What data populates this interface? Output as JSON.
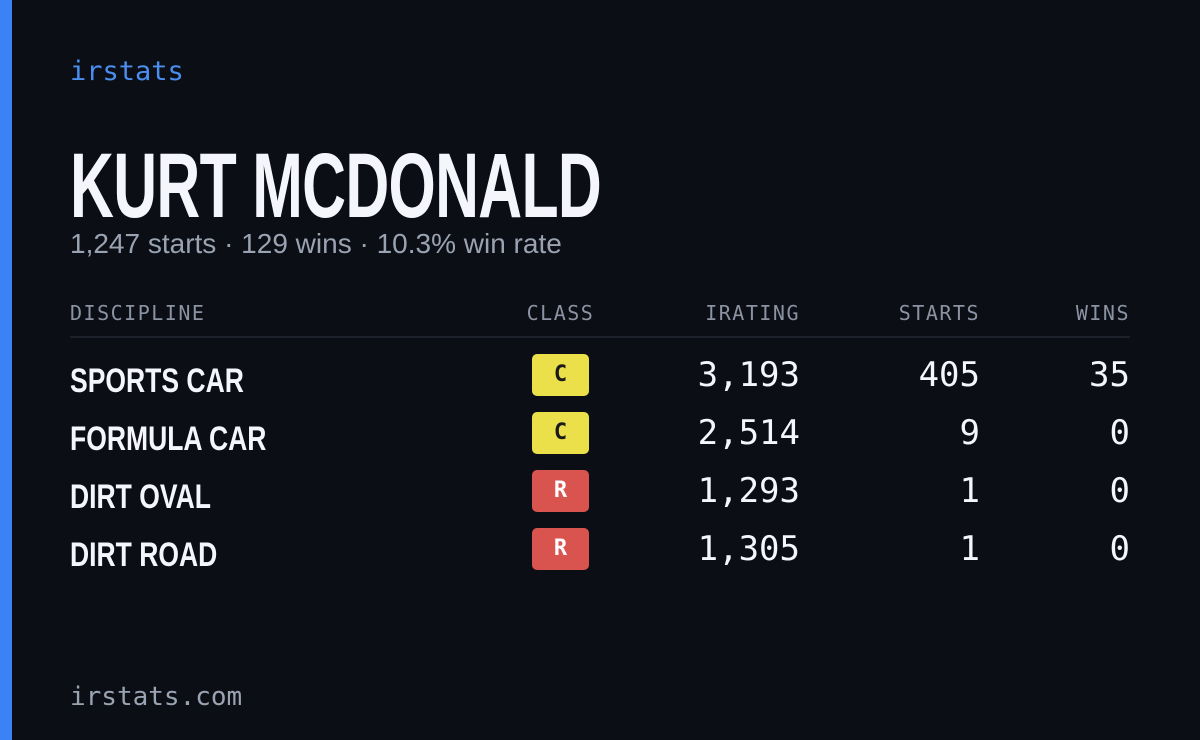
{
  "brand": "irstats",
  "name": "KURT MCDONALD",
  "summary": "1,247 starts · 129 wins · 10.3% win rate",
  "table": {
    "headers": [
      "DISCIPLINE",
      "CLASS",
      "IRATING",
      "STARTS",
      "WINS"
    ],
    "rows": [
      [
        "SPORTS CAR",
        "C",
        "3,193",
        "405",
        "35"
      ],
      [
        "FORMULA CAR",
        "C",
        "2,514",
        "9",
        "0"
      ],
      [
        "DIRT OVAL",
        "R",
        "1,293",
        "1",
        "0"
      ],
      [
        "DIRT ROAD",
        "R",
        "1,305",
        "1",
        "0"
      ]
    ]
  },
  "footer": "irstats.com"
}
